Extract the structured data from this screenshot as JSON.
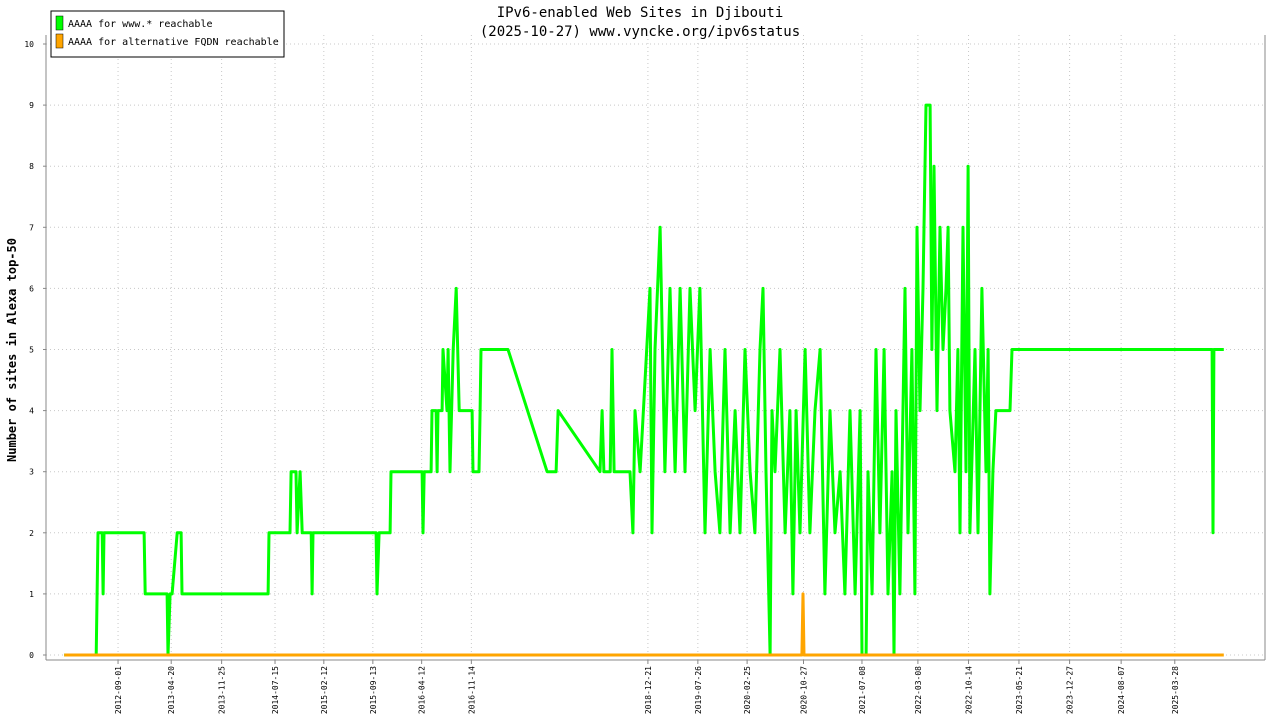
{
  "chart_data": {
    "type": "line",
    "title": "IPv6-enabled Web Sites in Djibouti",
    "subtitle": "(2025-10-27) www.vyncke.org/ipv6status",
    "y_label": "Number of sites in Alexa top-50",
    "xlim": [
      "2011-10-24",
      "2026-04-24"
    ],
    "ylim": [
      0,
      10
    ],
    "yticks": [
      0,
      1,
      2,
      3,
      4,
      5,
      6,
      7,
      8,
      9,
      10
    ],
    "xticks": [
      "2012-09-01",
      "2013-04-20",
      "2013-11-25",
      "2014-07-15",
      "2015-02-12",
      "2015-09-13",
      "2016-04-12",
      "2016-11-14",
      "2018-12-21",
      "2019-07-26",
      "2020-02-25",
      "2020-10-27",
      "2021-07-08",
      "2022-03-08",
      "2022-10-14",
      "2023-05-21",
      "2023-12-27",
      "2024-08-07",
      "2025-03-28"
    ],
    "grid": true,
    "legend": "top-left",
    "series": [
      {
        "name": "AAAA for www.* reachable",
        "color": "#00ff00",
        "x": [
          "2012-01-11",
          "2012-05-29",
          "2012-06-02",
          "2012-06-06",
          "2012-06-24",
          "2012-06-28",
          "2012-07-02",
          "2012-12-23",
          "2012-12-28",
          "2013-04-02",
          "2013-04-06",
          "2013-04-15",
          "2013-04-24",
          "2013-05-16",
          "2013-06-02",
          "2013-06-06",
          "2014-06-15",
          "2014-06-19",
          "2014-09-18",
          "2014-09-23",
          "2014-10-14",
          "2014-10-19",
          "2014-11-01",
          "2014-11-10",
          "2014-12-19",
          "2014-12-23",
          "2014-12-27",
          "2015-09-27",
          "2015-10-01",
          "2015-10-10",
          "2015-11-27",
          "2015-12-01",
          "2016-04-14",
          "2016-04-18",
          "2016-04-23",
          "2016-05-23",
          "2016-05-27",
          "2016-06-14",
          "2016-06-18",
          "2016-06-22",
          "2016-07-10",
          "2016-07-14",
          "2016-07-31",
          "2016-08-05",
          "2016-08-13",
          "2016-08-27",
          "2016-09-09",
          "2016-09-22",
          "2016-09-26",
          "2016-11-17",
          "2016-11-21",
          "2016-12-17",
          "2016-12-22",
          "2016-12-26",
          "2017-04-22",
          "2017-10-09",
          "2017-11-17",
          "2017-11-26",
          "2018-05-27",
          "2018-06-05",
          "2018-06-13",
          "2018-07-10",
          "2018-07-18",
          "2018-07-27",
          "2018-10-04",
          "2018-10-17",
          "2018-10-26",
          "2018-11-17",
          "2018-12-30",
          "2019-01-08",
          "2019-01-21",
          "2019-02-12",
          "2019-03-05",
          "2019-03-27",
          "2019-04-18",
          "2019-05-10",
          "2019-05-31",
          "2019-06-22",
          "2019-07-14",
          "2019-08-04",
          "2019-08-26",
          "2019-09-17",
          "2019-10-09",
          "2019-10-30",
          "2019-11-21",
          "2019-12-13",
          "2020-01-04",
          "2020-01-25",
          "2020-02-16",
          "2020-03-09",
          "2020-03-30",
          "2020-04-21",
          "2020-05-04",
          "2020-05-17",
          "2020-06-04",
          "2020-06-12",
          "2020-06-25",
          "2020-07-17",
          "2020-08-08",
          "2020-08-29",
          "2020-09-11",
          "2020-09-25",
          "2020-10-12",
          "2020-11-03",
          "2020-11-24",
          "2020-12-16",
          "2021-01-07",
          "2021-01-28",
          "2021-02-19",
          "2021-03-13",
          "2021-04-04",
          "2021-04-25",
          "2021-05-17",
          "2021-06-08",
          "2021-06-30",
          "2021-07-08",
          "2021-07-26",
          "2021-08-03",
          "2021-08-21",
          "2021-09-07",
          "2021-09-24",
          "2021-10-12",
          "2021-10-29",
          "2021-11-16",
          "2021-11-24",
          "2021-12-03",
          "2021-12-20",
          "2022-01-11",
          "2022-01-24",
          "2022-02-10",
          "2022-02-23",
          "2022-03-04",
          "2022-03-17",
          "2022-03-30",
          "2022-04-12",
          "2022-04-30",
          "2022-05-08",
          "2022-05-17",
          "2022-05-30",
          "2022-06-12",
          "2022-06-25",
          "2022-07-08",
          "2022-07-17",
          "2022-07-25",
          "2022-08-16",
          "2022-08-29",
          "2022-09-07",
          "2022-09-20",
          "2022-10-03",
          "2022-10-12",
          "2022-10-20",
          "2022-11-11",
          "2022-11-24",
          "2022-12-11",
          "2022-12-29",
          "2023-01-07",
          "2023-01-15",
          "2023-01-28",
          "2023-02-10",
          "2023-04-12",
          "2023-04-21",
          "2025-09-06",
          "2025-09-10",
          "2025-09-14",
          "2025-10-27"
        ],
        "values": [
          0,
          0,
          1,
          2,
          2,
          1,
          2,
          2,
          1,
          1,
          0,
          1,
          1,
          2,
          2,
          1,
          1,
          2,
          2,
          3,
          3,
          2,
          3,
          2,
          2,
          1,
          2,
          2,
          1,
          2,
          2,
          3,
          3,
          2,
          3,
          3,
          4,
          4,
          3,
          4,
          4,
          5,
          4,
          5,
          3,
          5,
          6,
          4,
          4,
          4,
          3,
          3,
          4,
          5,
          5,
          3,
          3,
          4,
          3,
          4,
          3,
          3,
          5,
          3,
          3,
          2,
          4,
          3,
          6,
          2,
          5,
          7,
          3,
          6,
          3,
          6,
          3,
          6,
          4,
          6,
          2,
          5,
          3,
          2,
          5,
          2,
          4,
          2,
          5,
          3,
          2,
          5,
          6,
          3,
          0,
          4,
          3,
          5,
          2,
          4,
          1,
          4,
          2,
          5,
          2,
          4,
          5,
          1,
          4,
          2,
          3,
          1,
          4,
          1,
          4,
          0,
          0,
          3,
          1,
          5,
          2,
          5,
          1,
          3,
          0,
          4,
          1,
          6,
          2,
          5,
          1,
          7,
          4,
          6,
          9,
          9,
          5,
          8,
          4,
          7,
          5,
          6,
          7,
          4,
          3,
          5,
          2,
          7,
          3,
          8,
          2,
          5,
          2,
          6,
          3,
          5,
          1,
          3,
          4,
          4,
          5,
          5,
          2,
          5,
          5
        ]
      },
      {
        "name": "AAAA for alternative FQDN reachable",
        "color": "#ffa500",
        "x": [
          "2012-01-11",
          "2020-10-20",
          "2020-10-25",
          "2020-10-29",
          "2025-10-27"
        ],
        "values": [
          0,
          0,
          1,
          0,
          0
        ]
      }
    ]
  }
}
